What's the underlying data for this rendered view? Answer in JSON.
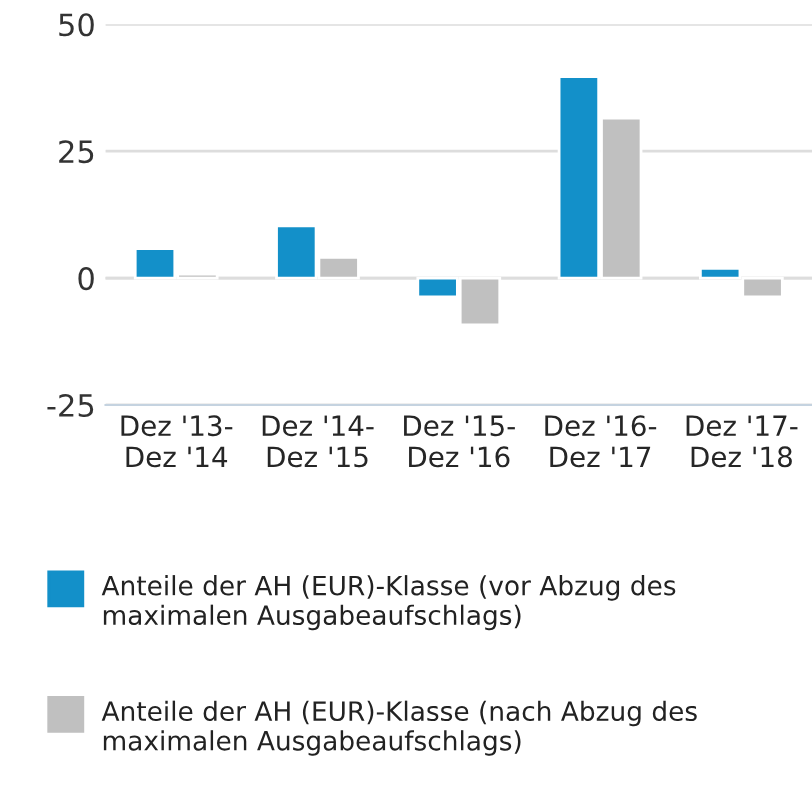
{
  "chart_data": {
    "type": "bar",
    "categories": [
      "Dez '13-\nDez '14",
      "Dez '14-\nDez '15",
      "Dez '15-\nDez '16",
      "Dez '16-\nDez '17",
      "Dez '17-\nDez '18"
    ],
    "series": [
      {
        "name": "Anteile der AH (EUR)-Klasse (vor Abzug des maximalen Ausgabeaufschlags)",
        "color": "#1390c9",
        "values": [
          5.8,
          10.3,
          -3.7,
          39.7,
          1.9
        ]
      },
      {
        "name": "Anteile der AH (EUR)-Klasse (nach Abzug des maximalen Ausgabeaufschlags)",
        "color": "#c0c0c0",
        "values": [
          0.8,
          4.1,
          -9.2,
          31.5,
          -3.7
        ]
      }
    ],
    "ylim": [
      -25,
      50
    ],
    "yticks": [
      -25,
      0,
      25,
      50
    ],
    "grid": "y",
    "legend": "bottom"
  }
}
